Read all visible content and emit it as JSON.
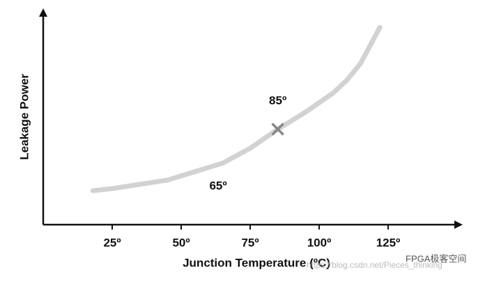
{
  "chart_data": {
    "type": "line",
    "x_label": "Junction Temperature (ºC)",
    "y_label": "Leakage Power",
    "x": [
      18,
      25,
      35,
      45,
      55,
      65,
      75,
      85,
      95,
      105,
      110,
      115,
      122
    ],
    "series": [
      {
        "color": "#d2d2d2",
        "values": [
          16,
          17,
          19,
          21,
          25,
          29,
          36,
          45,
          53,
          62,
          68,
          76,
          93
        ]
      }
    ],
    "marker": {
      "x": 85,
      "y": 45,
      "color": "#888888"
    },
    "annotations": [
      "85º",
      "65º"
    ],
    "xlim": [
      0,
      150
    ],
    "ylim": [
      0,
      100
    ],
    "xticks": [
      {
        "value": 25,
        "label": "25º"
      },
      {
        "value": 50,
        "label": "50º"
      },
      {
        "value": 75,
        "label": "75º"
      },
      {
        "value": 100,
        "label": "100º"
      },
      {
        "value": 125,
        "label": "125º"
      }
    ],
    "watermark": "FPGA极客空间",
    "watermark_url": "https://blog.csdn.net/Pieces_thinking"
  }
}
